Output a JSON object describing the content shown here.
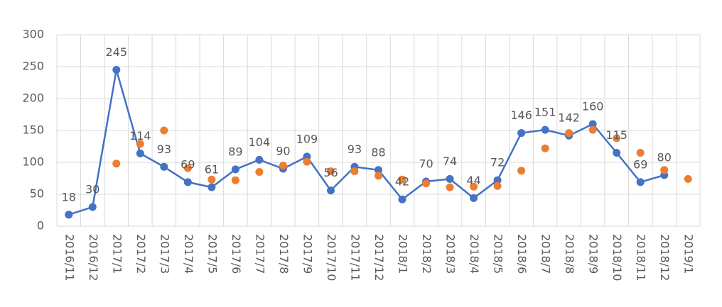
{
  "chart_data": {
    "type": "line",
    "categories": [
      "2016/11",
      "2016/12",
      "2017/1",
      "2017/2",
      "2017/3",
      "2017/4",
      "2017/5",
      "2017/6",
      "2017/7",
      "2017/8",
      "2017/9",
      "2017/10",
      "2017/11",
      "2017/12",
      "2018/1",
      "2018/2",
      "2018/3",
      "2018/4",
      "2018/5",
      "2018/6",
      "2018/7",
      "2018/8",
      "2018/9",
      "2018/10",
      "2018/11",
      "2018/12",
      "2019/1"
    ],
    "series": [
      {
        "color": "#4472c4",
        "line": true,
        "data_labels": true,
        "values": [
          18,
          30,
          245,
          114,
          93,
          69,
          61,
          89,
          104,
          90,
          109,
          56,
          93,
          88,
          42,
          70,
          74,
          44,
          72,
          146,
          151,
          142,
          160,
          115,
          69,
          80,
          null
        ]
      },
      {
        "color": "#ed7d31",
        "line": false,
        "data_labels": false,
        "values": [
          null,
          null,
          98,
          129,
          150,
          91,
          73,
          72,
          85,
          95,
          101,
          86,
          86,
          79,
          73,
          67,
          61,
          62,
          63,
          87,
          122,
          146,
          151,
          138,
          115,
          88,
          74
        ]
      }
    ],
    "ylim": [
      0,
      300
    ],
    "yticks": [
      0,
      50,
      100,
      150,
      200,
      250,
      300
    ],
    "grid": true
  }
}
